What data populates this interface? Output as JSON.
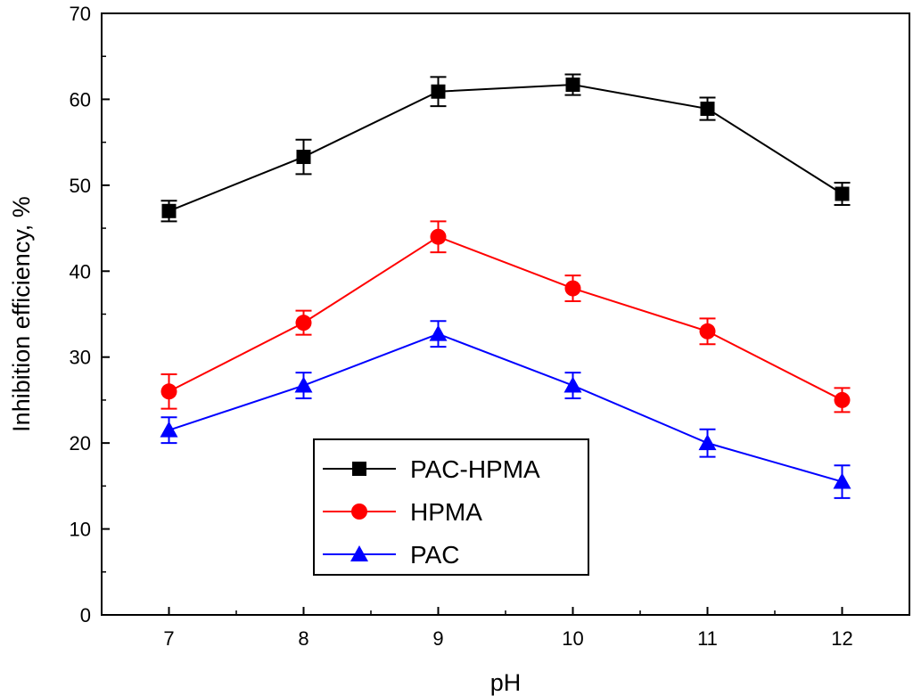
{
  "chart_data": {
    "type": "line",
    "title": "",
    "xlabel": "pH",
    "ylabel": "Inhibition efficiency, %",
    "x": [
      7,
      8,
      9,
      10,
      11,
      12
    ],
    "xlim": [
      6.5,
      12.5
    ],
    "ylim": [
      0,
      70
    ],
    "x_ticks": [
      "7",
      "8",
      "9",
      "10",
      "11",
      "12"
    ],
    "y_ticks": [
      "0",
      "10",
      "20",
      "30",
      "40",
      "50",
      "60",
      "70"
    ],
    "grid": false,
    "legend_position": "bottom-center",
    "series": [
      {
        "name": "PAC-HPMA",
        "color": "#000000",
        "marker": "square",
        "values": [
          47.0,
          53.3,
          60.9,
          61.7,
          58.9,
          49.0
        ],
        "errors": [
          1.2,
          2.0,
          1.7,
          1.2,
          1.3,
          1.3
        ]
      },
      {
        "name": "HPMA",
        "color": "#ff0000",
        "marker": "circle",
        "values": [
          26.0,
          34.0,
          44.0,
          38.0,
          33.0,
          25.0
        ],
        "errors": [
          2.0,
          1.4,
          1.8,
          1.5,
          1.5,
          1.4
        ]
      },
      {
        "name": "PAC",
        "color": "#0000ff",
        "marker": "triangle",
        "values": [
          21.5,
          26.7,
          32.7,
          26.7,
          20.0,
          15.5
        ],
        "errors": [
          1.5,
          1.5,
          1.5,
          1.5,
          1.6,
          1.9
        ]
      }
    ]
  }
}
